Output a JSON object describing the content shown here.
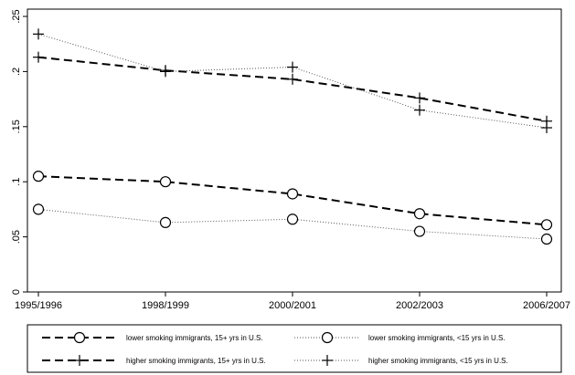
{
  "chart_data": {
    "type": "line",
    "title": "",
    "xlabel": "",
    "ylabel": "",
    "categories": [
      "1995/1996",
      "1998/1999",
      "2000/2001",
      "2002/2003",
      "2006/2007"
    ],
    "ylim": [
      0,
      0.25
    ],
    "yticks": [
      {
        "value": 0,
        "label": "0"
      },
      {
        "value": 0.05,
        "label": ".05"
      },
      {
        "value": 0.1,
        "label": ".1"
      },
      {
        "value": 0.15,
        "label": ".15"
      },
      {
        "value": 0.2,
        "label": ".2"
      },
      {
        "value": 0.25,
        "label": ".25"
      }
    ],
    "grid": false,
    "legend_position": "bottom",
    "series": [
      {
        "name": "lower smoking immigrants, 15+ yrs in U.S.",
        "line": "dashed",
        "marker": "circle",
        "values": [
          0.105,
          0.1,
          0.089,
          0.071,
          0.061
        ]
      },
      {
        "name": "lower smoking immigrants, <15 yrs in U.S.",
        "line": "dotted",
        "marker": "circle",
        "values": [
          0.075,
          0.063,
          0.066,
          0.055,
          0.048
        ]
      },
      {
        "name": "higher smoking immigrants, 15+ yrs in U.S.",
        "line": "dashed",
        "marker": "plus",
        "values": [
          0.213,
          0.201,
          0.193,
          0.176,
          0.155
        ]
      },
      {
        "name": "higher smoking immigrants, <15 yrs in U.S.",
        "line": "dotted",
        "marker": "plus",
        "values": [
          0.234,
          0.2,
          0.204,
          0.165,
          0.149
        ]
      }
    ],
    "colors": {
      "line": "#000000",
      "dotted_line": "#555555",
      "background": "#ffffff"
    }
  }
}
